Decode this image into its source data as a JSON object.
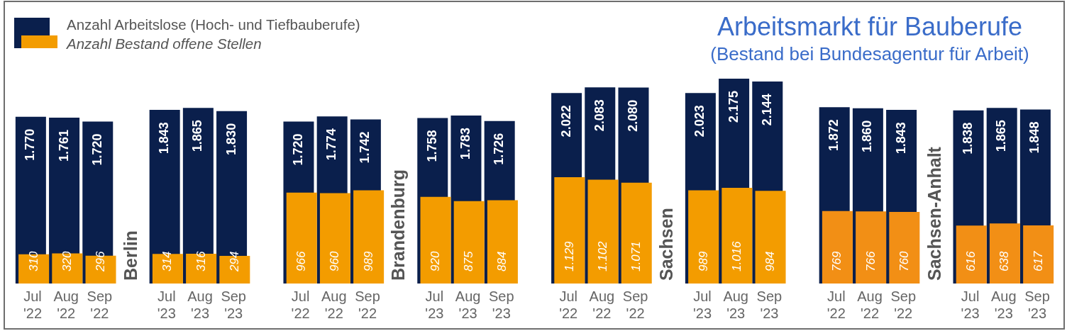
{
  "chart_data": {
    "type": "bar",
    "title": "Arbeitsmarkt für Bauberufe",
    "subtitle": "(Bestand bei Bundesagentur für Arbeit)",
    "categories": [
      "Jul '22",
      "Aug '22",
      "Sep '22",
      "Jul '23",
      "Aug '23",
      "Sep '23",
      "Jul '22",
      "Aug '22",
      "Sep '22",
      "Jul '23",
      "Aug '23",
      "Sep '23",
      "Jul '22",
      "Aug '22",
      "Sep '22",
      "Jul '23",
      "Aug '23",
      "Sep '23",
      "Jul '22",
      "Aug '22",
      "Sep '22",
      "Jul '23",
      "Aug '23",
      "Sep '23"
    ],
    "series": [
      {
        "name": "Anzahl Arbeitslose (Hoch- und Tiefbauberufe)",
        "color": "#0a1f4c",
        "values": [
          1770,
          1761,
          1720,
          1843,
          1865,
          1830,
          1720,
          1774,
          1742,
          1758,
          1783,
          1726,
          2022,
          2083,
          2080,
          2023,
          2175,
          2144,
          1872,
          1860,
          1843,
          1838,
          1865,
          1848
        ],
        "value_labels": [
          "1.770",
          "1.761",
          "1.720",
          "1.843",
          "1.865",
          "1.830",
          "1.720",
          "1.774",
          "1.742",
          "1.758",
          "1.783",
          "1.726",
          "2.022",
          "2.083",
          "2.080",
          "2.023",
          "2.175",
          "2.144",
          "1.872",
          "1.860",
          "1.843",
          "1.838",
          "1.865",
          "1.848"
        ]
      },
      {
        "name": "Anzahl Bestand offene Stellen",
        "color": "#f39c00",
        "colors": [
          "#f39c00",
          "#f39c00",
          "#f39c00",
          "#f39c00",
          "#f39c00",
          "#f39c00",
          "#f39c00",
          "#f39c00",
          "#f39c00",
          "#f39c00",
          "#f39c00",
          "#f39c00",
          "#f39c00",
          "#f39c00",
          "#f39c00",
          "#f39c00",
          "#f39c00",
          "#f39c00",
          "#f28f15",
          "#f28f15",
          "#f28f15",
          "#f28f15",
          "#f28f15",
          "#f28f15"
        ],
        "values": [
          310,
          320,
          296,
          314,
          316,
          294,
          966,
          960,
          989,
          920,
          875,
          884,
          1129,
          1102,
          1071,
          989,
          1016,
          984,
          769,
          766,
          760,
          616,
          638,
          617
        ],
        "value_labels": [
          "310",
          "320",
          "296",
          "314",
          "316",
          "294",
          "966",
          "960",
          "989",
          "920",
          "875",
          "884",
          "1.129",
          "1.102",
          "1.071",
          "989",
          "1.016",
          "984",
          "769",
          "766",
          "760",
          "616",
          "638",
          "617"
        ]
      }
    ],
    "annotations": [
      "Berlin",
      "Brandenburg",
      "Sachsen",
      "Sachsen-Anhalt"
    ],
    "legend": "top left",
    "tick_labels": "x"
  }
}
